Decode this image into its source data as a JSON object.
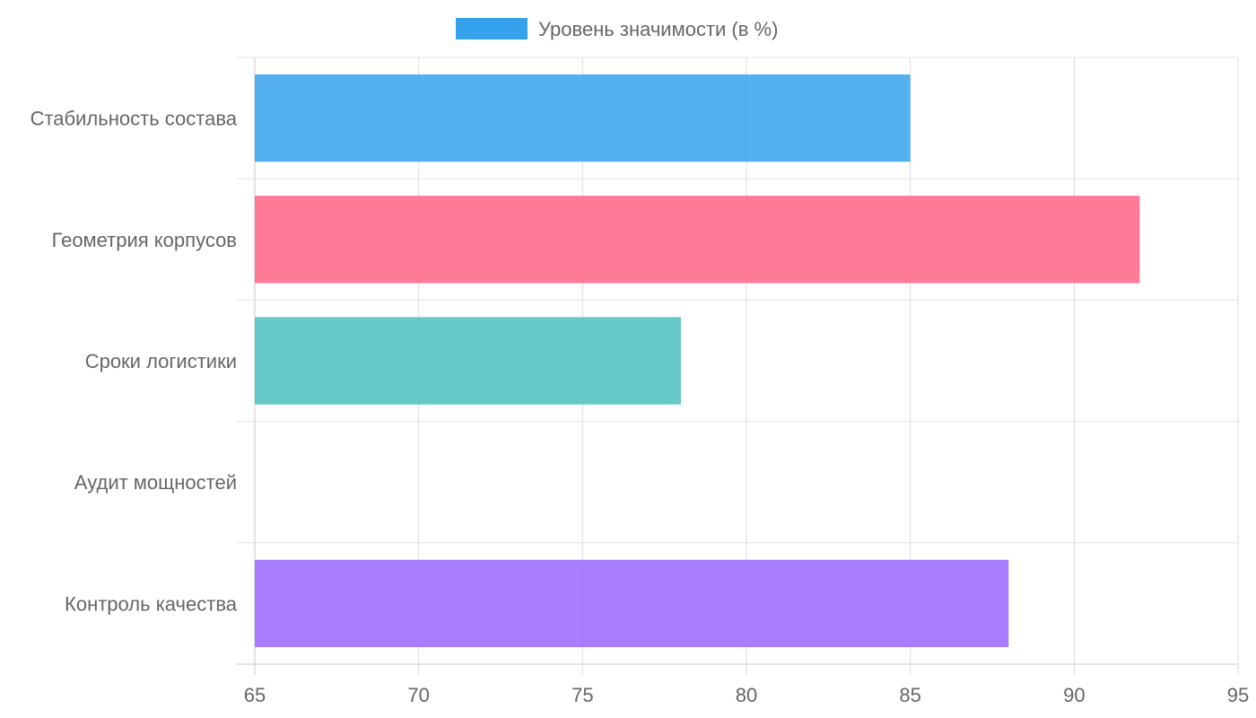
{
  "chart_data": {
    "type": "bar",
    "orientation": "horizontal",
    "categories": [
      "Стабильность состава",
      "Геометрия корпусов",
      "Сроки логистики",
      "Аудит мощностей",
      "Контроль качества"
    ],
    "series": [
      {
        "name": "Уровень значимости (в %)",
        "values": [
          85,
          92,
          78,
          65,
          88
        ]
      }
    ],
    "bar_colors": [
      "#36a2eb",
      "#ff6384",
      "#4bc0c0",
      "#ff9f40",
      "#9966ff"
    ],
    "legend_color": "#36a2eb",
    "xlim": [
      65,
      95
    ],
    "x_ticks": [
      65,
      70,
      75,
      80,
      85,
      90,
      95
    ],
    "grid": true,
    "legend_position": "top"
  }
}
